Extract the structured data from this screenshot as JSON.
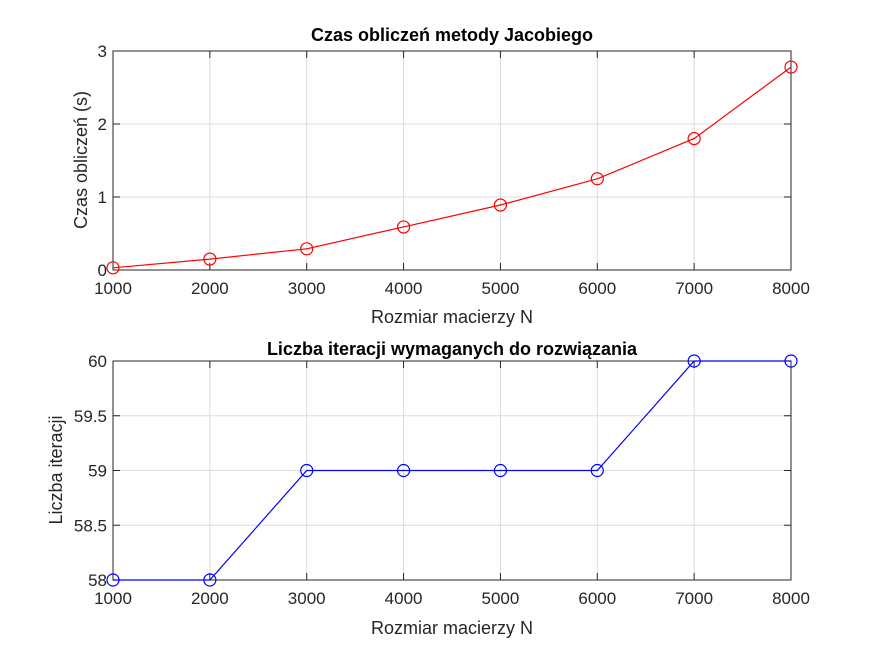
{
  "chart_data": [
    {
      "type": "line",
      "title": "Czas obliczeń metody Jacobiego",
      "xlabel": "Rozmiar macierzy N",
      "ylabel": "Czas obliczeń (s)",
      "x": [
        1000,
        2000,
        3000,
        4000,
        5000,
        6000,
        7000,
        8000
      ],
      "series": [
        {
          "values": [
            0.03,
            0.15,
            0.29,
            0.59,
            0.89,
            1.25,
            1.8,
            2.78
          ],
          "color": "#ff0000",
          "marker": "circle"
        }
      ],
      "xlim": [
        1000,
        8000
      ],
      "ylim": [
        0,
        3
      ],
      "xticks": [
        1000,
        2000,
        3000,
        4000,
        5000,
        6000,
        7000,
        8000
      ],
      "xtick_labels": [
        "1000",
        "2000",
        "3000",
        "4000",
        "5000",
        "6000",
        "7000",
        "8000"
      ],
      "yticks": [
        0,
        1,
        2,
        3
      ],
      "ytick_labels": [
        "0",
        "1",
        "2",
        "3"
      ],
      "grid": true
    },
    {
      "type": "line",
      "title": "Liczba iteracji wymaganych do rozwiązania",
      "xlabel": "Rozmiar macierzy N",
      "ylabel": "Liczba iteracji",
      "x": [
        1000,
        2000,
        3000,
        4000,
        5000,
        6000,
        7000,
        8000
      ],
      "series": [
        {
          "values": [
            58,
            58,
            59,
            59,
            59,
            59,
            60,
            60
          ],
          "color": "#0000ff",
          "marker": "circle"
        }
      ],
      "xlim": [
        1000,
        8000
      ],
      "ylim": [
        58,
        60
      ],
      "xticks": [
        1000,
        2000,
        3000,
        4000,
        5000,
        6000,
        7000,
        8000
      ],
      "xtick_labels": [
        "1000",
        "2000",
        "3000",
        "4000",
        "5000",
        "6000",
        "7000",
        "8000"
      ],
      "yticks": [
        58,
        58.5,
        59,
        59.5,
        60
      ],
      "ytick_labels": [
        "58",
        "58.5",
        "59",
        "59.5",
        "60"
      ],
      "grid": true
    }
  ]
}
